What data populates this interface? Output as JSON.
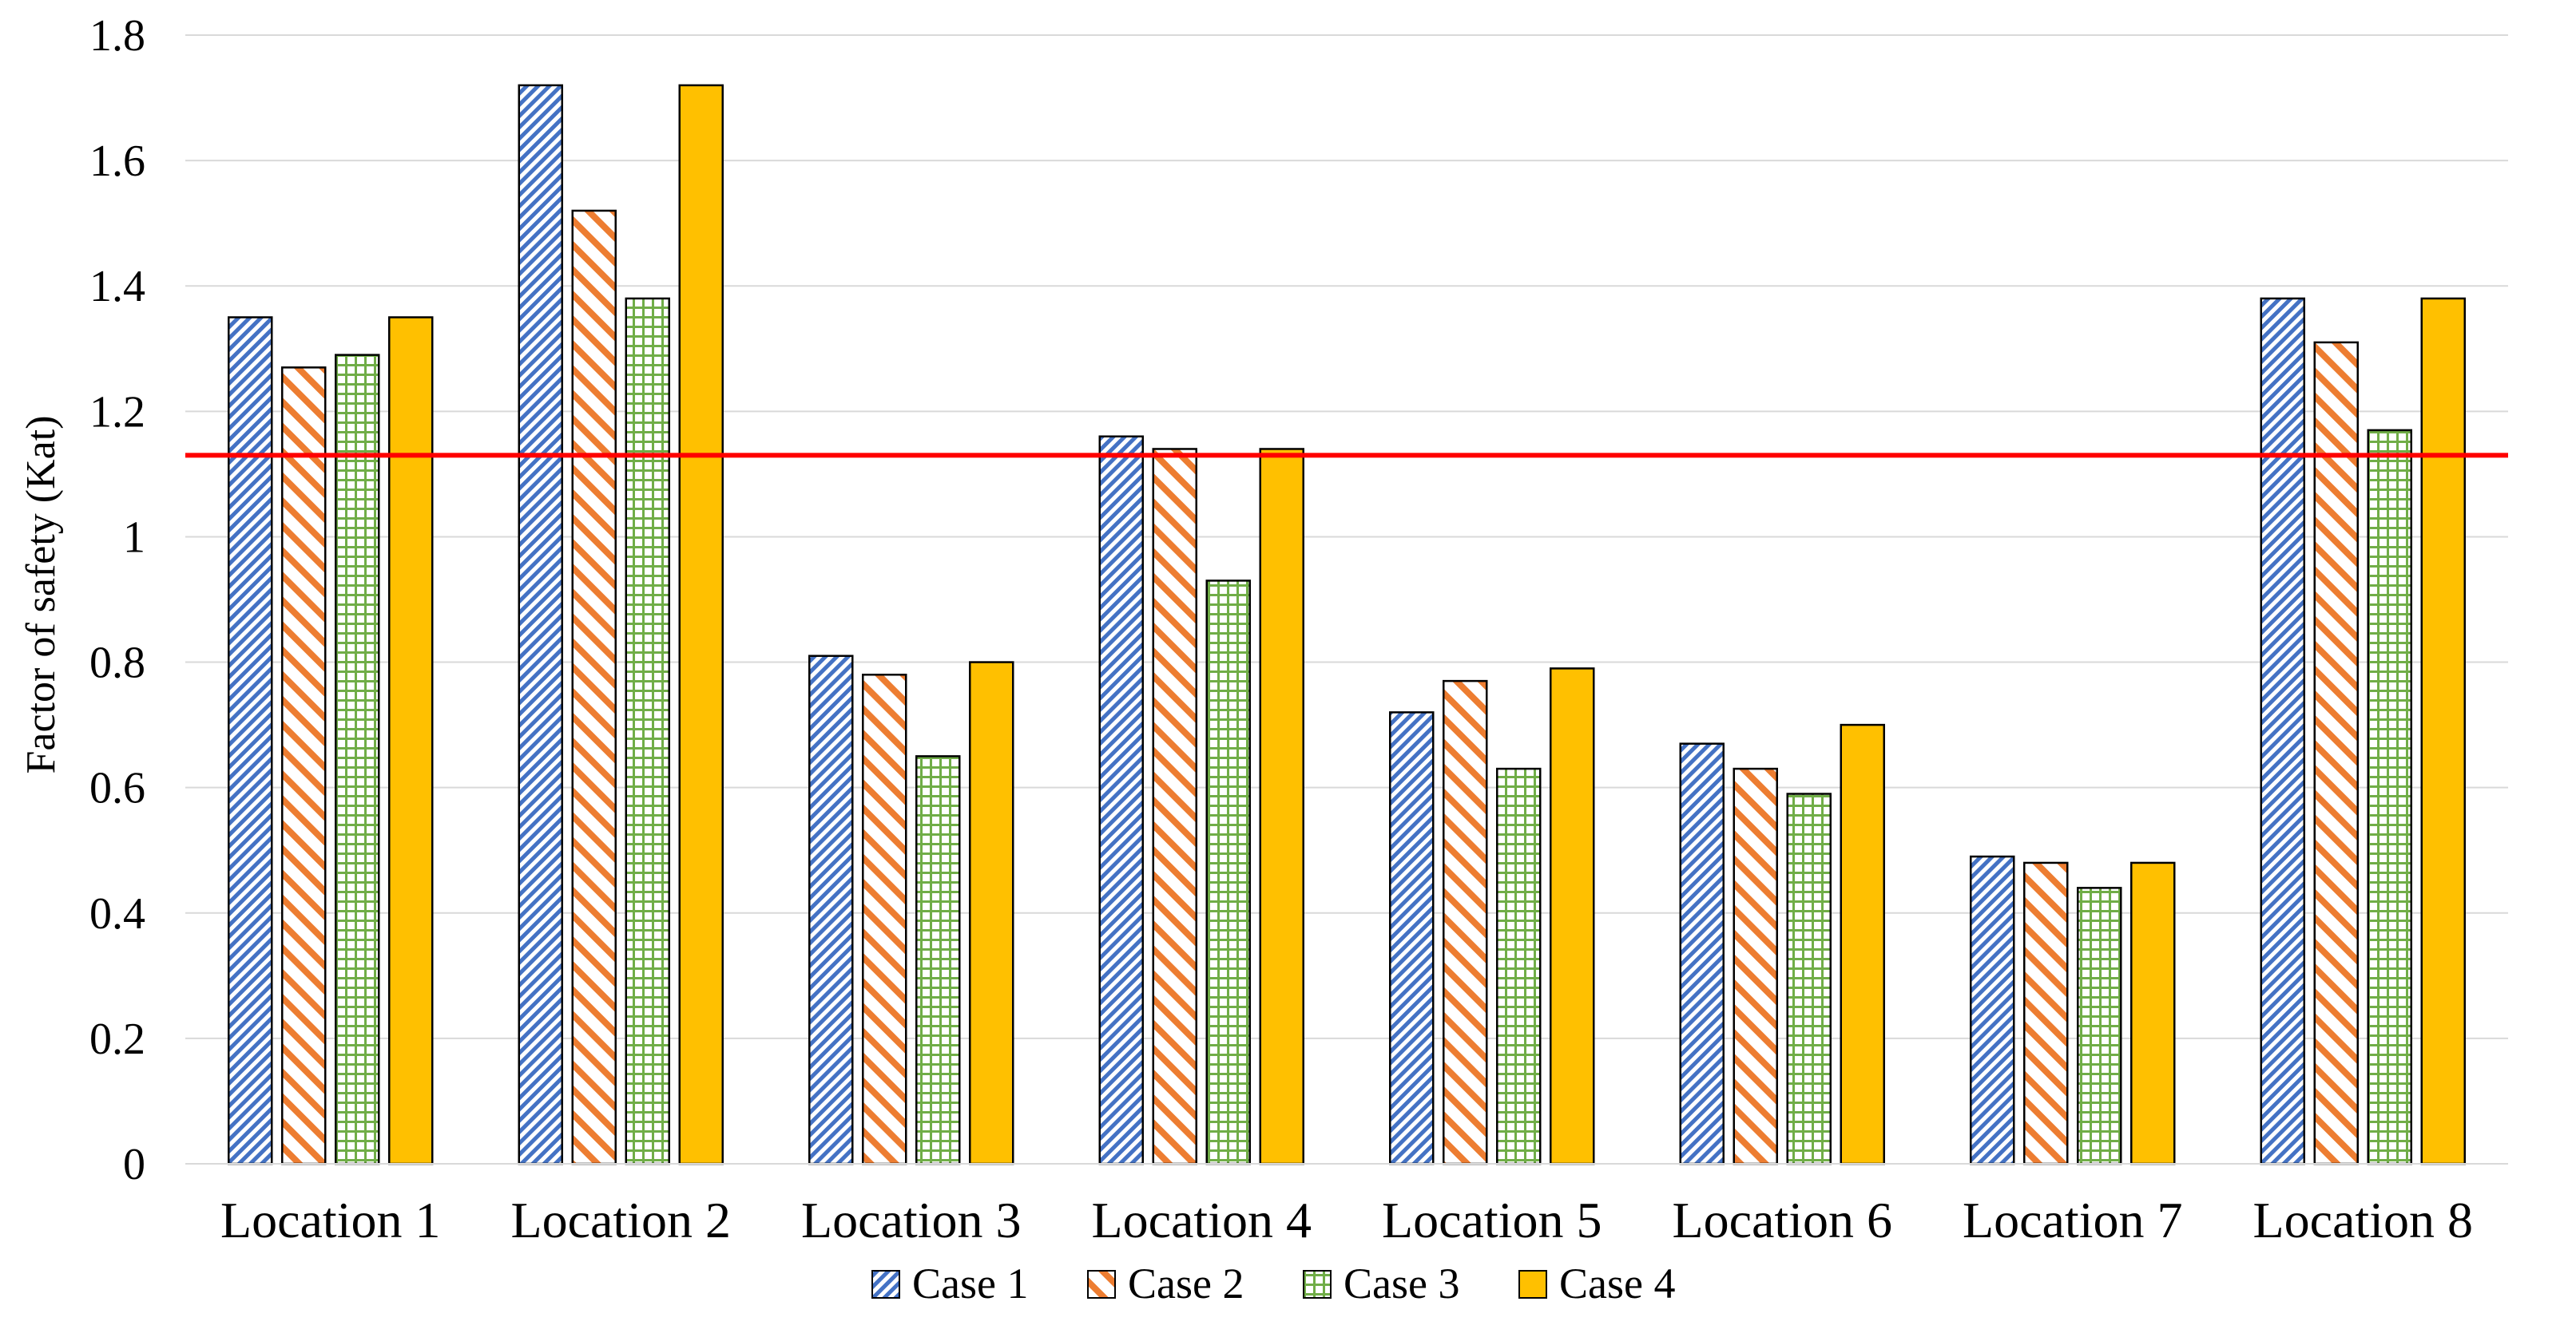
{
  "chart_data": {
    "type": "bar",
    "ylabel": "Factor of safety (Kat)",
    "ylim": [
      0,
      1.8
    ],
    "yticks": [
      "0",
      "0.2",
      "0.4",
      "0.6",
      "0.8",
      "1",
      "1.2",
      "1.4",
      "1.6",
      "1.8"
    ],
    "categories": [
      "Location 1",
      "Location 2",
      "Location 3",
      "Location 4",
      "Location 5",
      "Location 6",
      "Location 7",
      "Location 8"
    ],
    "series": [
      {
        "name": "Case 1",
        "values": [
          1.35,
          1.72,
          0.81,
          1.16,
          0.72,
          0.67,
          0.49,
          1.38
        ],
        "color": "#4472C4",
        "pattern": "diagonal-stripes"
      },
      {
        "name": "Case 2",
        "values": [
          1.27,
          1.52,
          0.78,
          1.14,
          0.77,
          0.63,
          0.48,
          1.31
        ],
        "color": "#ED7D31",
        "pattern": "wide-diagonal-stripes"
      },
      {
        "name": "Case 3",
        "values": [
          1.29,
          1.38,
          0.65,
          0.93,
          0.63,
          0.59,
          0.44,
          1.17
        ],
        "color": "#70AD47",
        "pattern": "grid"
      },
      {
        "name": "Case 4",
        "values": [
          1.35,
          1.72,
          0.8,
          1.14,
          0.79,
          0.7,
          0.48,
          1.38
        ],
        "color": "#FFC000",
        "pattern": "solid"
      }
    ],
    "reference_line": {
      "value": 1.13,
      "color": "#FF0000"
    },
    "grid": true,
    "legend_position": "bottom"
  }
}
